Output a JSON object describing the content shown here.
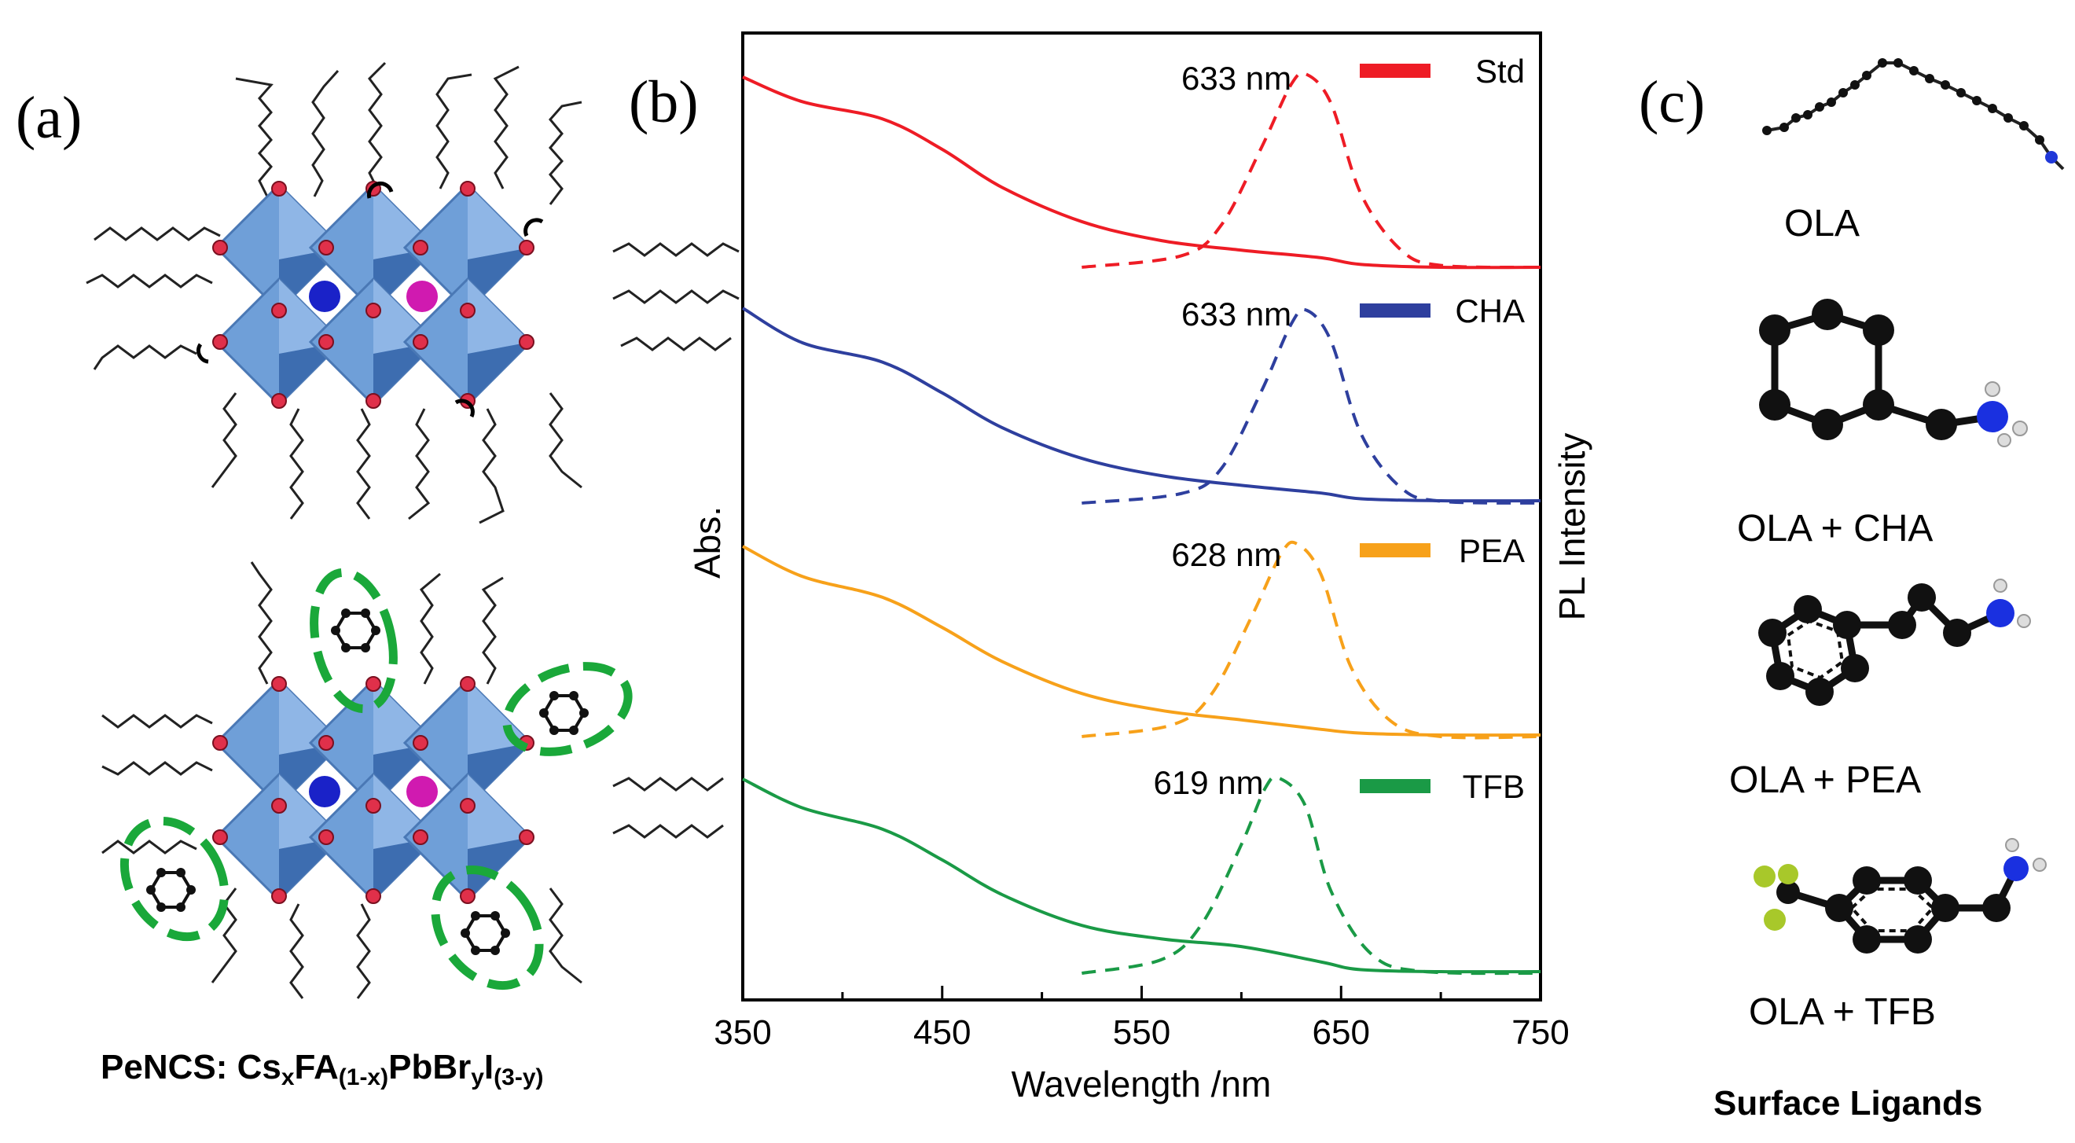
{
  "panels": {
    "a": "(a)",
    "b": "(b)",
    "c": "(c)"
  },
  "panel_a": {
    "caption_prefix": "PeNCS: Cs",
    "caption_sub1": "x",
    "caption_mid1": "FA",
    "caption_sub2": "(1-x)",
    "caption_mid2": "PbBr",
    "caption_sub3": "y",
    "caption_mid3": "I",
    "caption_sub4": "(3-y)"
  },
  "panel_c": {
    "ligands": [
      "OLA",
      "OLA + CHA",
      "OLA + PEA",
      "OLA + TFB"
    ],
    "title": "Surface Ligands"
  },
  "colors": {
    "Std": "#ee1c25",
    "CHA": "#2e3f9e",
    "PEA": "#f7a11a",
    "TFB": "#1a9a46"
  },
  "chart_data": {
    "type": "line",
    "title": "",
    "xlabel": "Wavelength /nm",
    "ylabel_left": "Abs.",
    "ylabel_right": "PL Intensity",
    "xlim": [
      350,
      750
    ],
    "xticks": [
      350,
      450,
      550,
      650,
      750
    ],
    "legend_location": "right, one entry per stacked series",
    "series": [
      {
        "name": "Std",
        "pl_peak_label": "633 nm",
        "pl_peak_nm": 633,
        "absorbance": [
          [
            350,
            1.0
          ],
          [
            380,
            0.87
          ],
          [
            420,
            0.78
          ],
          [
            450,
            0.62
          ],
          [
            480,
            0.42
          ],
          [
            520,
            0.24
          ],
          [
            560,
            0.14
          ],
          [
            600,
            0.09
          ],
          [
            640,
            0.05
          ],
          [
            660,
            0.015
          ],
          [
            700,
            0.0
          ],
          [
            750,
            0.0
          ]
        ],
        "pl": [
          [
            520,
            0.0
          ],
          [
            570,
            0.06
          ],
          [
            590,
            0.22
          ],
          [
            610,
            0.62
          ],
          [
            625,
            0.95
          ],
          [
            633,
            1.0
          ],
          [
            645,
            0.85
          ],
          [
            660,
            0.38
          ],
          [
            680,
            0.09
          ],
          [
            700,
            0.01
          ],
          [
            750,
            0.0
          ]
        ]
      },
      {
        "name": "CHA",
        "pl_peak_label": "633 nm",
        "pl_peak_nm": 633,
        "absorbance": [
          [
            350,
            1.0
          ],
          [
            380,
            0.82
          ],
          [
            420,
            0.72
          ],
          [
            450,
            0.56
          ],
          [
            480,
            0.38
          ],
          [
            520,
            0.22
          ],
          [
            560,
            0.13
          ],
          [
            600,
            0.08
          ],
          [
            640,
            0.04
          ],
          [
            660,
            0.01
          ],
          [
            700,
            0.0
          ],
          [
            750,
            0.0
          ]
        ],
        "pl": [
          [
            520,
            0.0
          ],
          [
            570,
            0.05
          ],
          [
            590,
            0.18
          ],
          [
            610,
            0.58
          ],
          [
            625,
            0.93
          ],
          [
            633,
            1.0
          ],
          [
            645,
            0.84
          ],
          [
            660,
            0.36
          ],
          [
            680,
            0.08
          ],
          [
            700,
            0.01
          ],
          [
            750,
            0.0
          ]
        ]
      },
      {
        "name": "PEA",
        "pl_peak_label": "628 nm",
        "pl_peak_nm": 628,
        "absorbance": [
          [
            350,
            1.0
          ],
          [
            380,
            0.84
          ],
          [
            420,
            0.73
          ],
          [
            450,
            0.57
          ],
          [
            480,
            0.39
          ],
          [
            520,
            0.22
          ],
          [
            560,
            0.13
          ],
          [
            600,
            0.08
          ],
          [
            640,
            0.03
          ],
          [
            660,
            0.01
          ],
          [
            700,
            0.0
          ],
          [
            750,
            0.0
          ]
        ],
        "pl": [
          [
            520,
            0.0
          ],
          [
            565,
            0.06
          ],
          [
            585,
            0.22
          ],
          [
            605,
            0.62
          ],
          [
            620,
            0.95
          ],
          [
            628,
            1.0
          ],
          [
            640,
            0.84
          ],
          [
            655,
            0.36
          ],
          [
            675,
            0.08
          ],
          [
            700,
            0.0
          ],
          [
            750,
            0.0
          ]
        ]
      },
      {
        "name": "TFB",
        "pl_peak_label": "619 nm",
        "pl_peak_nm": 619,
        "absorbance": [
          [
            350,
            1.0
          ],
          [
            380,
            0.85
          ],
          [
            420,
            0.74
          ],
          [
            450,
            0.58
          ],
          [
            480,
            0.4
          ],
          [
            520,
            0.24
          ],
          [
            560,
            0.17
          ],
          [
            600,
            0.13
          ],
          [
            640,
            0.05
          ],
          [
            660,
            0.01
          ],
          [
            700,
            0.0
          ],
          [
            750,
            0.0
          ]
        ],
        "pl": [
          [
            520,
            0.0
          ],
          [
            560,
            0.07
          ],
          [
            580,
            0.25
          ],
          [
            600,
            0.66
          ],
          [
            612,
            0.95
          ],
          [
            619,
            1.0
          ],
          [
            632,
            0.86
          ],
          [
            645,
            0.42
          ],
          [
            665,
            0.1
          ],
          [
            690,
            0.01
          ],
          [
            750,
            0.0
          ]
        ]
      }
    ]
  }
}
